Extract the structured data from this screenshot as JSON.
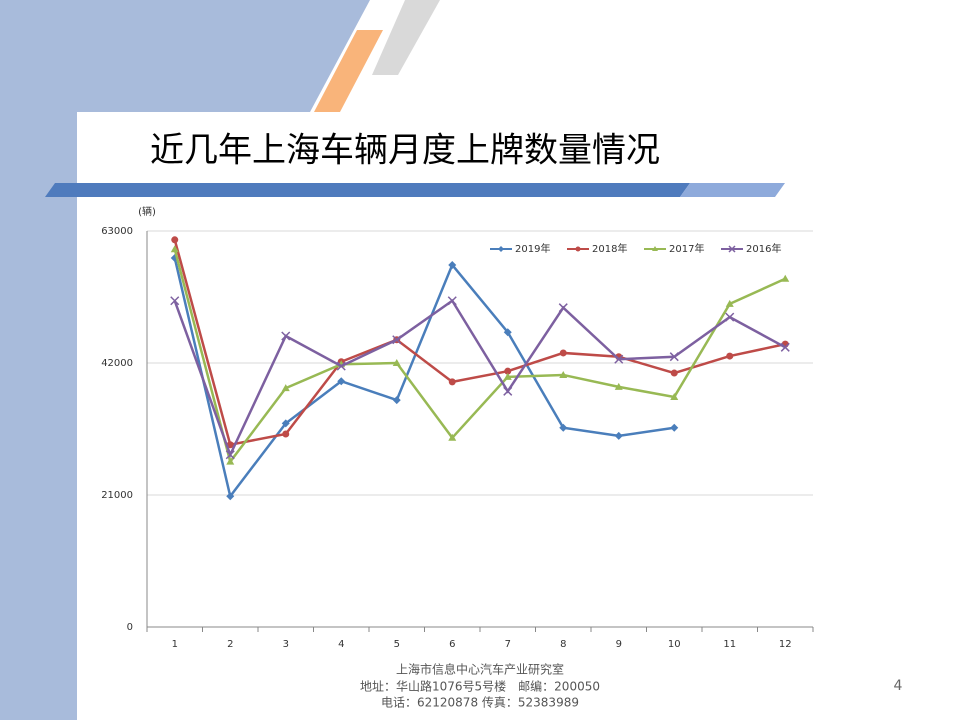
{
  "chart_data": {
    "type": "line",
    "title": "近几年上海车辆月度上牌数量情况",
    "y_label": "(辆)",
    "categories": [
      "1",
      "2",
      "3",
      "4",
      "5",
      "6",
      "7",
      "8",
      "9",
      "10",
      "11",
      "12"
    ],
    "series": [
      {
        "name": "2019年",
        "color": "#4a7ebb",
        "marker": "diamond",
        "values": [
          58700,
          20800,
          32400,
          39100,
          36100,
          57600,
          46900,
          31700,
          30400,
          31700,
          null,
          null
        ]
      },
      {
        "name": "2018年",
        "color": "#be4b48",
        "marker": "circle",
        "values": [
          61600,
          29000,
          30700,
          42200,
          45700,
          39000,
          40700,
          43600,
          43000,
          40400,
          43100,
          45000
        ]
      },
      {
        "name": "2017年",
        "color": "#98b954",
        "marker": "triangle",
        "values": [
          60100,
          26300,
          38000,
          41800,
          42000,
          30100,
          39800,
          40100,
          38200,
          36600,
          51400,
          55400
        ]
      },
      {
        "name": "2016年",
        "color": "#7d60a0",
        "marker": "x",
        "values": [
          51900,
          27400,
          46300,
          41500,
          45700,
          51900,
          37500,
          50800,
          42600,
          43000,
          49300,
          44500
        ]
      }
    ],
    "ylim": [
      0,
      63000
    ],
    "yticks": [
      0,
      21000,
      42000,
      63000
    ],
    "grid": true,
    "legend": "top-right"
  },
  "footer": {
    "lines": [
      "上海市信息中心汽车产业研究室",
      "地址：华山路1076号5号楼　邮编：200050",
      "电话：62120878  传真：52383989"
    ],
    "page_number": "4"
  }
}
